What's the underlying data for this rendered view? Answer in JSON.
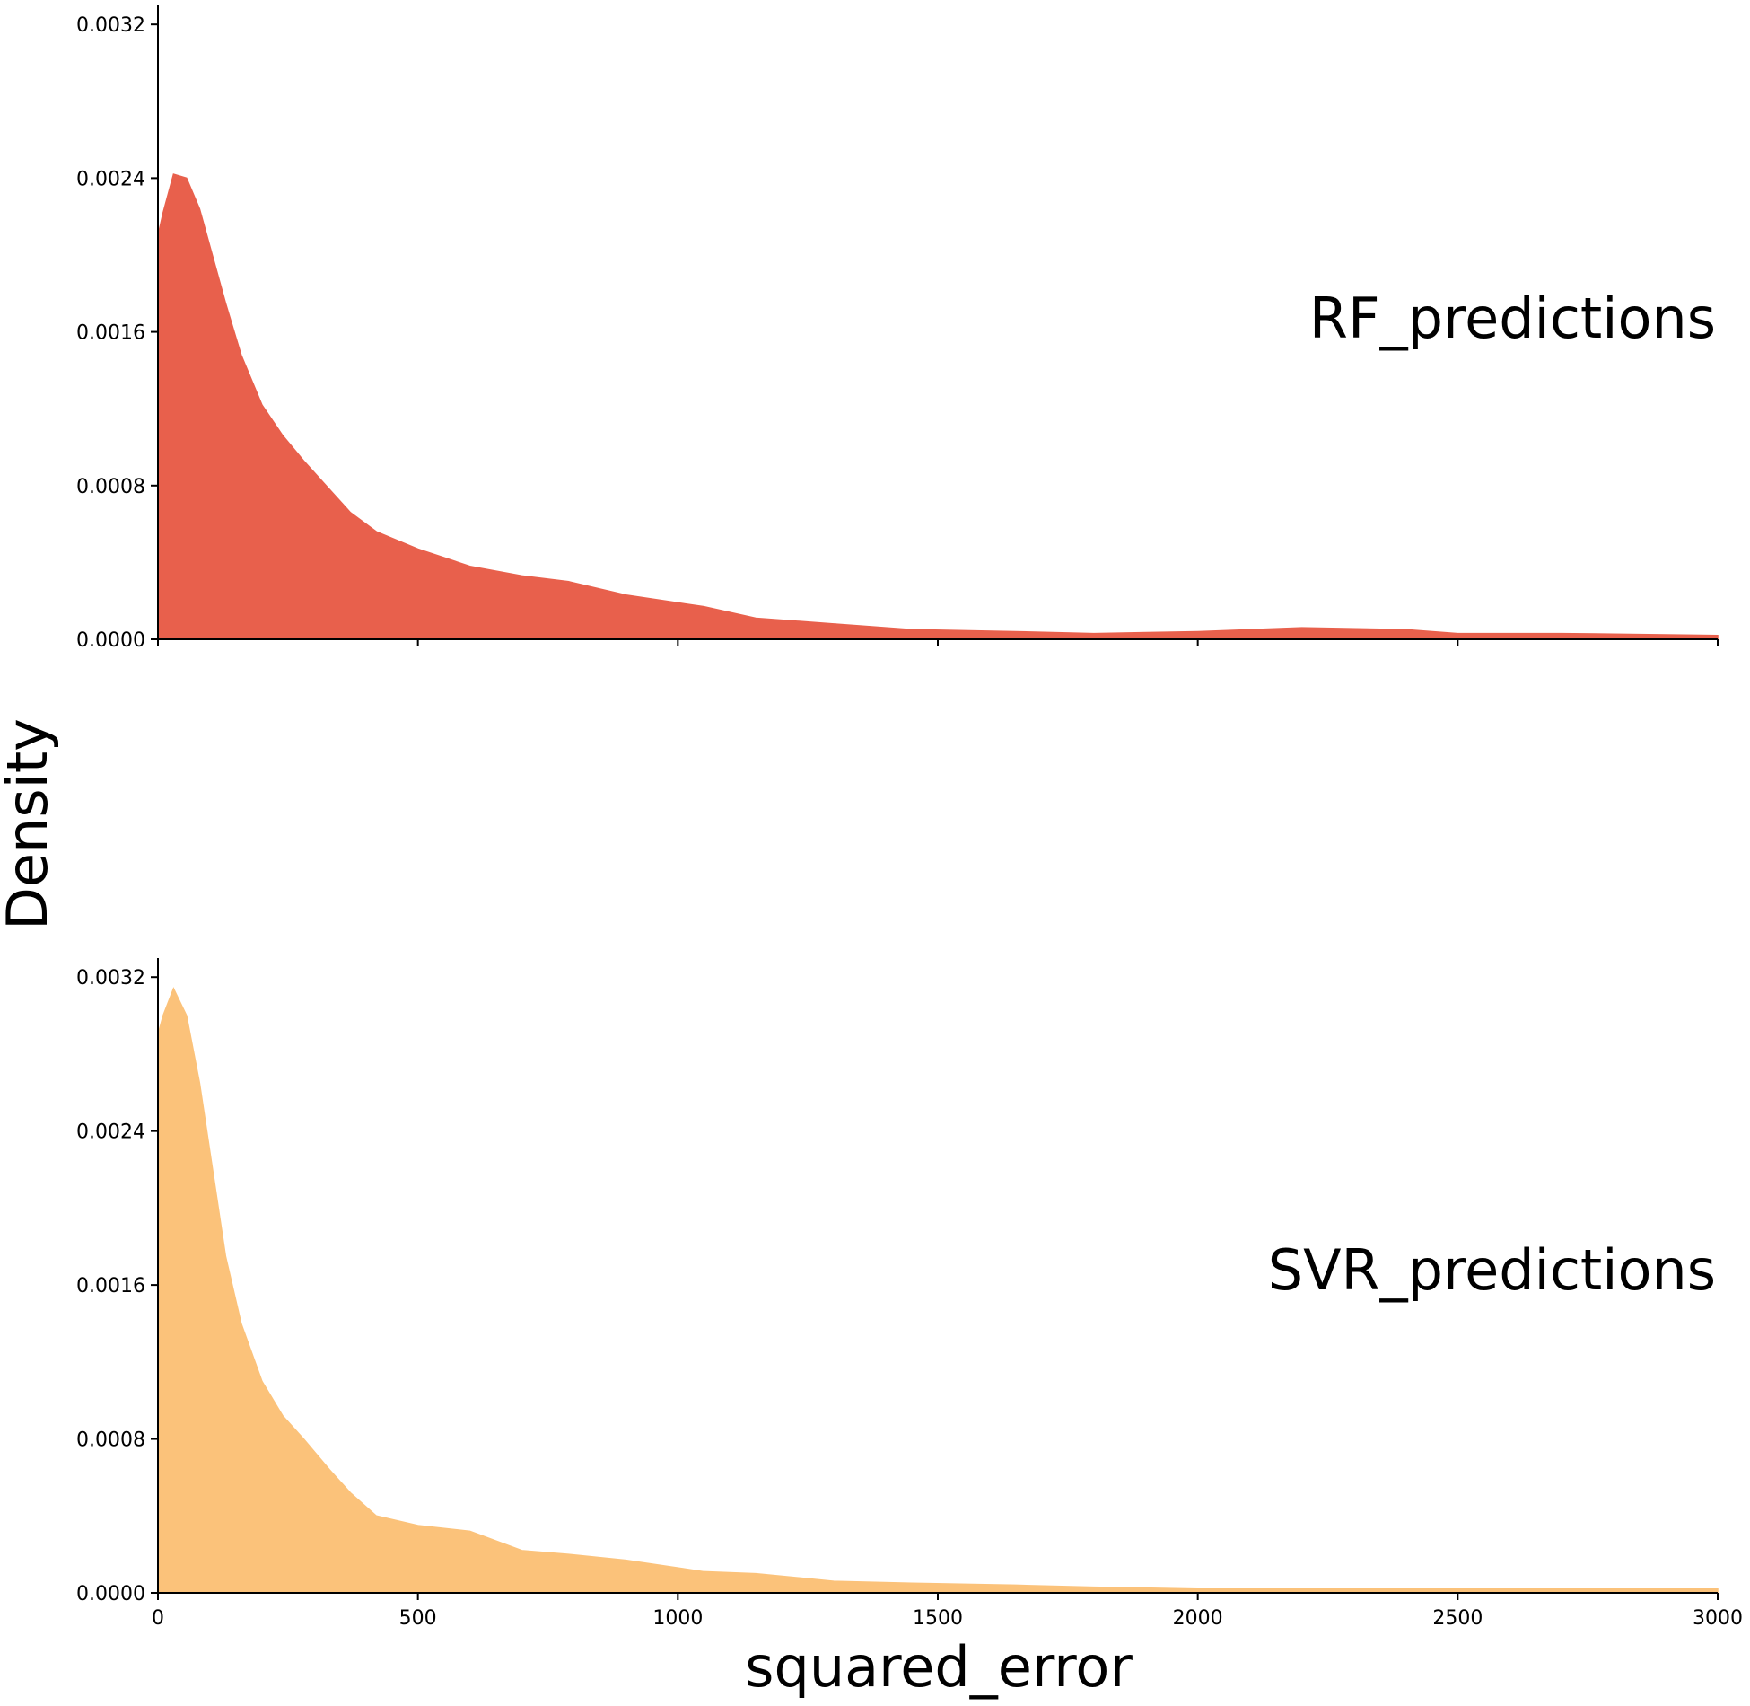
{
  "chart_data": {
    "type": "area",
    "xlabel": "squared_error",
    "ylabel": "Density",
    "xlim": [
      0,
      3000
    ],
    "ylim": [
      0,
      0.0033
    ],
    "x_ticks": [
      "0",
      "500",
      "1000",
      "1500",
      "2000",
      "2500",
      "3000"
    ],
    "y_ticks": [
      "0.0000",
      "0.0008",
      "0.0016",
      "0.0024",
      "0.0032"
    ],
    "grid": false,
    "sharex": true,
    "panels": [
      {
        "label": "RF_predictions",
        "color": "#e8604c",
        "x": [
          0,
          10,
          30,
          55,
          80,
          130,
          160,
          200,
          240,
          280,
          330,
          370,
          420,
          500,
          600,
          700,
          790,
          900,
          1050,
          1150,
          1300,
          1450,
          1650,
          1800,
          2000,
          2200,
          2400,
          2500,
          2700,
          3000
        ],
        "y": [
          0.0021,
          0.00222,
          0.00242,
          0.0024,
          0.00224,
          0.00175,
          0.00148,
          0.00122,
          0.00106,
          0.00093,
          0.00078,
          0.00066,
          0.00056,
          0.00047,
          0.00038,
          0.00033,
          0.0003,
          0.00023,
          0.00017,
          0.00011,
          8e-05,
          5e-05,
          4e-05,
          3e-05,
          4e-05,
          6e-05,
          5e-05,
          3e-05,
          3e-05,
          2e-05
        ]
      },
      {
        "label": "SVR_predictions",
        "color": "#fbc27a",
        "x": [
          0,
          10,
          30,
          55,
          80,
          130,
          160,
          200,
          240,
          280,
          330,
          370,
          420,
          500,
          600,
          700,
          790,
          900,
          1050,
          1150,
          1300,
          1450,
          1650,
          1800,
          2000,
          2200,
          2400,
          2500,
          2700,
          3000
        ],
        "y": [
          0.0029,
          0.003,
          0.00314,
          0.003,
          0.00265,
          0.00175,
          0.0014,
          0.0011,
          0.00092,
          0.0008,
          0.00064,
          0.00052,
          0.0004,
          0.00035,
          0.00032,
          0.00022,
          0.0002,
          0.00017,
          0.00011,
          0.0001,
          6e-05,
          5e-05,
          4e-05,
          3e-05,
          2e-05,
          2e-05,
          2e-05,
          2e-05,
          2e-05,
          2e-05
        ]
      }
    ]
  }
}
